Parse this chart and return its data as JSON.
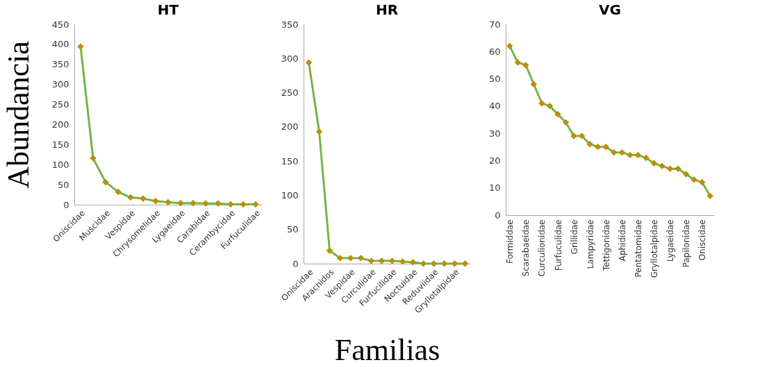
{
  "chart_data": [
    {
      "type": "line",
      "title": "HT",
      "ylabel": "Abundancia",
      "categories": [
        "Oniscidae",
        null,
        "Muscidae",
        null,
        "Vespidae",
        null,
        "Chrysomelidae",
        null,
        "Lygaeidae",
        null,
        "Carabidae",
        null,
        "Cerambycidae",
        null,
        "Furfuculidae"
      ],
      "series": [
        {
          "color": "#77b347",
          "values": [
            394,
            116,
            56,
            32,
            18,
            15,
            9,
            6,
            4,
            4,
            3,
            3,
            1,
            1,
            1
          ]
        }
      ],
      "ylim": [
        0,
        450
      ],
      "yticks": [
        0,
        50,
        100,
        150,
        200,
        250,
        300,
        350,
        400,
        450
      ],
      "marker": "diamond",
      "grid": false
    },
    {
      "type": "line",
      "title": "HR",
      "xlabel": "Familias",
      "categories": [
        "Oniscidae",
        null,
        "Aracnidos",
        null,
        "Vespidae",
        null,
        "Curculidae",
        null,
        "Furfucilidae",
        null,
        "Noctuidae",
        null,
        "Reduviidae",
        null,
        "Gryllotalpidae",
        null
      ],
      "series": [
        {
          "color": "#77b347",
          "values": [
            294,
            193,
            19,
            8,
            8,
            8,
            4,
            4,
            4,
            3,
            2,
            0,
            0,
            0,
            0,
            0
          ]
        }
      ],
      "ylim": [
        0,
        350
      ],
      "yticks": [
        0,
        50,
        100,
        150,
        200,
        250,
        300,
        350
      ],
      "marker": "diamond",
      "grid": false
    },
    {
      "type": "line",
      "title": "VG",
      "categories": [
        "Formiddae",
        null,
        "Scarabaeidae",
        null,
        "Curculionidae",
        null,
        "Furfuculidae",
        null,
        "Grillidae",
        null,
        "Lampyridae",
        null,
        "Tettigonidae",
        null,
        "Aphididae",
        null,
        "Pentatomidae",
        null,
        "Gryllotalpidae",
        null,
        "Lygaeidae",
        null,
        "Papilonidae",
        null,
        "Oniscidae",
        null
      ],
      "series": [
        {
          "color": "#77b347",
          "values": [
            62,
            56,
            55,
            48,
            41,
            40,
            37,
            34,
            29,
            29,
            26,
            25,
            25,
            23,
            23,
            22,
            22,
            21,
            19,
            18,
            17,
            17,
            15,
            13,
            12,
            7
          ]
        }
      ],
      "ylim": [
        0,
        70
      ],
      "yticks": [
        0,
        10,
        20,
        30,
        40,
        50,
        60,
        70
      ],
      "marker": "diamond",
      "grid": false
    }
  ]
}
